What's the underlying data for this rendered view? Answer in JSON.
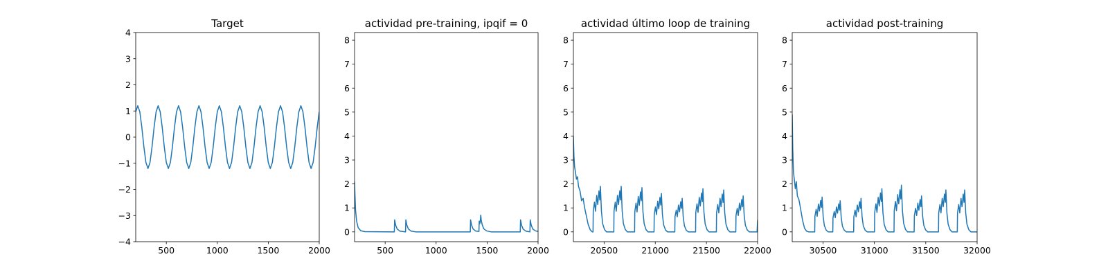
{
  "chart_data": [
    {
      "type": "line",
      "title": "Target",
      "color": "#1f77b4",
      "x": [
        200,
        220,
        240,
        260,
        280,
        300,
        320,
        340,
        360,
        380,
        400,
        420,
        440,
        460,
        480,
        500,
        520,
        540,
        560,
        580,
        600,
        620,
        640,
        660,
        680,
        700,
        720,
        740,
        760,
        780,
        800,
        820,
        840,
        860,
        880,
        900,
        920,
        940,
        960,
        980,
        1000,
        1020,
        1040,
        1060,
        1080,
        1100,
        1120,
        1140,
        1160,
        1180,
        1200,
        1220,
        1240,
        1260,
        1280,
        1300,
        1320,
        1340,
        1360,
        1380,
        1400,
        1420,
        1440,
        1460,
        1480,
        1500,
        1520,
        1540,
        1560,
        1580,
        1600,
        1620,
        1640,
        1660,
        1680,
        1700,
        1720,
        1740,
        1760,
        1780,
        1800,
        1820,
        1840,
        1860,
        1880,
        1900,
        1920,
        1940,
        1960,
        1980,
        2000
      ],
      "values": [
        0.97,
        1.2,
        0.97,
        0.37,
        -0.37,
        -0.97,
        -1.2,
        -0.97,
        -0.37,
        0.37,
        0.97,
        1.2,
        0.97,
        0.37,
        -0.37,
        -0.97,
        -1.2,
        -0.97,
        -0.37,
        0.37,
        0.97,
        1.2,
        0.97,
        0.37,
        -0.37,
        -0.97,
        -1.2,
        -0.97,
        -0.37,
        0.37,
        0.97,
        1.2,
        0.97,
        0.37,
        -0.37,
        -0.97,
        -1.2,
        -0.97,
        -0.37,
        0.37,
        0.97,
        1.2,
        0.97,
        0.37,
        -0.37,
        -0.97,
        -1.2,
        -0.97,
        -0.37,
        0.37,
        0.97,
        1.2,
        0.97,
        0.37,
        -0.37,
        -0.97,
        -1.2,
        -0.97,
        -0.37,
        0.37,
        0.97,
        1.2,
        0.97,
        0.37,
        -0.37,
        -0.97,
        -1.2,
        -0.97,
        -0.37,
        0.37,
        0.97,
        1.2,
        0.97,
        0.37,
        -0.37,
        -0.97,
        -1.2,
        -0.97,
        -0.37,
        0.37,
        0.97,
        1.2,
        0.97,
        0.37,
        -0.37,
        -0.97,
        -1.2,
        -0.97,
        -0.37,
        0.37,
        0.97
      ],
      "xlim": [
        200,
        2000
      ],
      "ylim": [
        -4,
        4
      ],
      "xticks": [
        500,
        1000,
        1500,
        2000
      ],
      "yticks": [
        {
          "value": -4,
          "label": "−4"
        },
        {
          "value": -3,
          "label": "−3"
        },
        {
          "value": -2,
          "label": "−2"
        },
        {
          "value": -1,
          "label": "−1"
        },
        0,
        1,
        2,
        3,
        4
      ]
    },
    {
      "type": "line",
      "title": "actividad pre-training, ipqif = 0",
      "color": "#1f77b4",
      "x": [
        200,
        205,
        210,
        220,
        235,
        260,
        300,
        590,
        593,
        603,
        618,
        645,
        700,
        703,
        713,
        728,
        755,
        800,
        1335,
        1338,
        1348,
        1363,
        1390,
        1420,
        1423,
        1428,
        1432,
        1435,
        1438,
        1442,
        1452,
        1467,
        1495,
        1540,
        1825,
        1828,
        1838,
        1853,
        1880,
        1920,
        1923,
        1933,
        1948,
        1975,
        2000
      ],
      "values": [
        2.1,
        1.4,
        0.9,
        0.45,
        0.18,
        0.05,
        0.01,
        0,
        0.5,
        0.28,
        0.12,
        0.03,
        0,
        0.5,
        0.28,
        0.12,
        0.03,
        0,
        0,
        0.5,
        0.28,
        0.12,
        0.03,
        0.02,
        0.45,
        0.35,
        0.4,
        0.55,
        0.7,
        0.5,
        0.3,
        0.13,
        0.04,
        0,
        0,
        0.5,
        0.28,
        0.12,
        0.03,
        0,
        0.5,
        0.28,
        0.12,
        0.04,
        0.02
      ],
      "xlim": [
        200,
        2000
      ],
      "ylim": [
        -0.41,
        8.32
      ],
      "xticks": [
        500,
        1000,
        1500,
        2000
      ],
      "yticks": [
        0,
        1,
        2,
        3,
        4,
        5,
        6,
        7,
        8
      ]
    },
    {
      "type": "line",
      "title": "actividad último loop de training",
      "color": "#1f77b4",
      "x": [
        20200,
        20205,
        20212,
        20220,
        20230,
        20240,
        20250,
        20265,
        20280,
        20295,
        20310,
        20325,
        20345,
        20365,
        20385,
        20392,
        20394,
        20406,
        20416,
        20428,
        20438,
        20450,
        20458,
        20464,
        20474,
        20486,
        20504,
        20524,
        20595,
        20597,
        20609,
        20619,
        20631,
        20641,
        20653,
        20661,
        20667,
        20677,
        20689,
        20707,
        20727,
        20798,
        20800,
        20812,
        20822,
        20834,
        20844,
        20856,
        20864,
        20870,
        20880,
        20892,
        20910,
        20930,
        20988,
        20990,
        21002,
        21012,
        21024,
        21034,
        21046,
        21054,
        21060,
        21070,
        21082,
        21100,
        21120,
        21191,
        21193,
        21205,
        21215,
        21227,
        21237,
        21249,
        21257,
        21263,
        21273,
        21285,
        21303,
        21323,
        21394,
        21396,
        21408,
        21418,
        21430,
        21440,
        21452,
        21460,
        21466,
        21476,
        21488,
        21506,
        21526,
        21597,
        21599,
        21611,
        21621,
        21633,
        21643,
        21655,
        21663,
        21669,
        21679,
        21691,
        21709,
        21729,
        21787,
        21789,
        21801,
        21811,
        21823,
        21833,
        21845,
        21853,
        21859,
        21869,
        21881,
        21899,
        21919,
        21995,
        22000
      ],
      "values": [
        4.0,
        3.2,
        2.7,
        2.5,
        2.2,
        2.3,
        1.9,
        1.7,
        1.3,
        1.4,
        1.0,
        0.7,
        0.3,
        0.08,
        0,
        0,
        0.86,
        1.24,
        0.86,
        1.52,
        1.14,
        1.71,
        1.33,
        1.9,
        0.86,
        0.34,
        0.1,
        0,
        0,
        0.86,
        1.24,
        0.86,
        1.52,
        1.14,
        1.71,
        1.33,
        1.9,
        0.86,
        0.34,
        0.1,
        0,
        0,
        0.83,
        1.2,
        0.83,
        1.48,
        1.11,
        1.67,
        1.3,
        1.85,
        0.83,
        0.33,
        0.09,
        0,
        0,
        0.72,
        1.04,
        0.72,
        1.28,
        0.96,
        1.44,
        1.12,
        1.6,
        0.72,
        0.29,
        0.08,
        0,
        0,
        0.63,
        0.91,
        0.63,
        1.12,
        0.84,
        1.26,
        0.98,
        1.4,
        0.63,
        0.25,
        0.07,
        0,
        0,
        0.81,
        1.17,
        0.81,
        1.44,
        1.08,
        1.62,
        1.26,
        1.8,
        0.81,
        0.32,
        0.09,
        0,
        0,
        0.79,
        1.14,
        0.79,
        1.4,
        1.05,
        1.58,
        1.23,
        1.75,
        0.79,
        0.32,
        0.09,
        0,
        0,
        0.68,
        0.98,
        0.68,
        1.2,
        0.9,
        1.35,
        1.05,
        1.5,
        0.68,
        0.27,
        0.08,
        0,
        0,
        0.5
      ],
      "xlim": [
        20200,
        22000
      ],
      "ylim": [
        -0.41,
        8.32
      ],
      "xticks": [
        20500,
        21000,
        21500,
        22000
      ],
      "yticks": [
        0,
        1,
        2,
        3,
        4,
        5,
        6,
        7,
        8
      ]
    },
    {
      "type": "line",
      "title": "actividad post-training",
      "color": "#1f77b4",
      "x": [
        30200,
        30205,
        30212,
        30220,
        30230,
        30240,
        30250,
        30265,
        30280,
        30300,
        30320,
        30340,
        30360,
        30419,
        30421,
        30433,
        30443,
        30455,
        30465,
        30477,
        30485,
        30491,
        30501,
        30513,
        30531,
        30551,
        30595,
        30597,
        30609,
        30619,
        30631,
        30641,
        30653,
        30661,
        30667,
        30677,
        30689,
        30707,
        30727,
        30798,
        30800,
        30812,
        30822,
        30834,
        30844,
        30856,
        30864,
        30870,
        30880,
        30892,
        30910,
        30930,
        31001,
        31003,
        31015,
        31025,
        31037,
        31047,
        31059,
        31067,
        31073,
        31083,
        31095,
        31113,
        31133,
        31191,
        31193,
        31205,
        31215,
        31227,
        31237,
        31249,
        31257,
        31263,
        31273,
        31285,
        31303,
        31323,
        31387,
        31389,
        31401,
        31411,
        31423,
        31433,
        31445,
        31453,
        31459,
        31469,
        31481,
        31499,
        31519,
        31624,
        31626,
        31638,
        31648,
        31660,
        31670,
        31682,
        31690,
        31696,
        31706,
        31718,
        31736,
        31756,
        31807,
        31809,
        31821,
        31831,
        31843,
        31853,
        31865,
        31873,
        31879,
        31889,
        31901,
        31919,
        31939,
        32000
      ],
      "values": [
        4.9,
        3.5,
        2.5,
        2.2,
        1.8,
        2.1,
        1.5,
        1.35,
        1.0,
        0.5,
        0.15,
        0.03,
        0,
        0,
        0.65,
        0.94,
        0.65,
        1.16,
        0.87,
        1.31,
        1.02,
        1.45,
        0.65,
        0.26,
        0.07,
        0,
        0,
        0.59,
        0.85,
        0.59,
        1.04,
        0.78,
        1.17,
        0.91,
        1.3,
        0.59,
        0.23,
        0.07,
        0,
        0,
        0.63,
        0.91,
        0.63,
        1.12,
        0.84,
        1.26,
        0.98,
        1.4,
        0.63,
        0.25,
        0.07,
        0,
        0,
        0.81,
        1.17,
        0.81,
        1.44,
        1.08,
        1.62,
        1.26,
        1.8,
        0.81,
        0.32,
        0.09,
        0,
        0,
        0.88,
        1.27,
        0.88,
        1.56,
        1.17,
        1.76,
        1.37,
        1.95,
        0.88,
        0.35,
        0.1,
        0,
        0,
        0.68,
        0.98,
        0.68,
        1.2,
        0.9,
        1.35,
        1.05,
        1.5,
        0.68,
        0.27,
        0.08,
        0,
        0,
        0.79,
        1.14,
        0.79,
        1.4,
        1.05,
        1.58,
        1.23,
        1.75,
        0.79,
        0.32,
        0.09,
        0,
        0,
        0.79,
        1.14,
        0.79,
        1.4,
        1.05,
        1.58,
        1.23,
        1.75,
        0.79,
        0.32,
        0.09,
        0,
        0
      ],
      "xlim": [
        30200,
        32000
      ],
      "ylim": [
        -0.41,
        8.32
      ],
      "xticks": [
        30500,
        31000,
        31500,
        32000
      ],
      "yticks": [
        0,
        1,
        2,
        3,
        4,
        5,
        6,
        7,
        8
      ]
    }
  ]
}
